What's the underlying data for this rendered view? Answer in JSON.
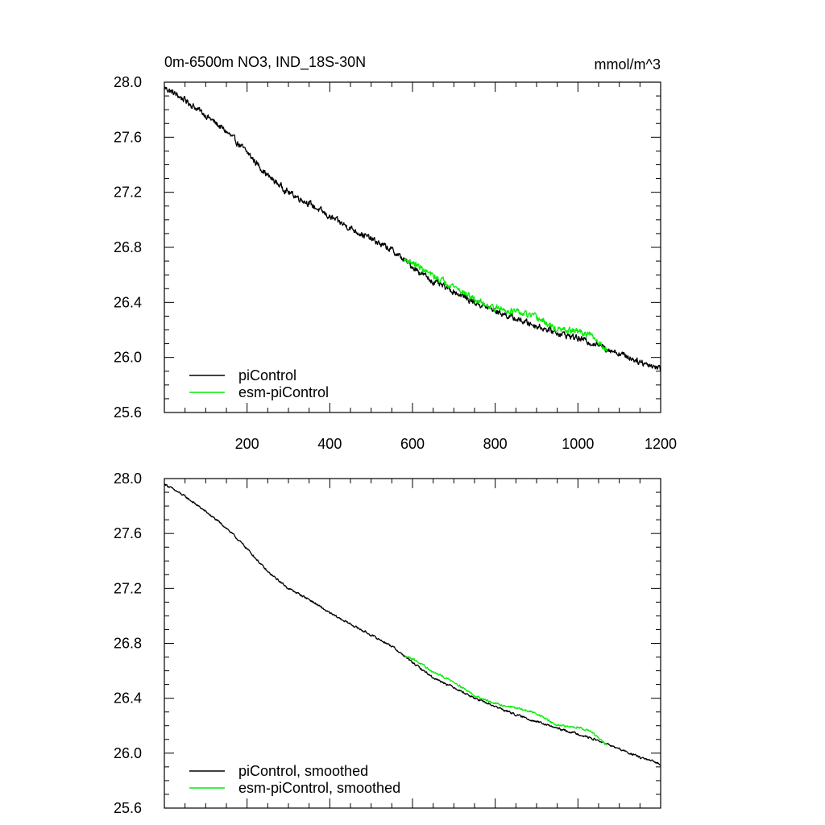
{
  "figure": {
    "title": "0m-6500m NO3, IND_18S-30N",
    "units": "mmol/m^3"
  },
  "chart_data": [
    {
      "type": "line",
      "panel": "top",
      "xlim": [
        0,
        1200
      ],
      "ylim": [
        25.6,
        28.0
      ],
      "x_ticks": [
        200,
        400,
        600,
        800,
        1000,
        1200
      ],
      "y_ticks": [
        25.6,
        26.0,
        26.4,
        26.8,
        27.2,
        27.6,
        28.0
      ],
      "x_tick_labels": [
        "200",
        "400",
        "600",
        "800",
        "1000",
        "1200"
      ],
      "y_tick_labels": [
        "25.6",
        "26.0",
        "26.4",
        "26.8",
        "27.2",
        "27.6",
        "28.0"
      ],
      "legend_position": "bottom-left",
      "series": [
        {
          "name": "piControl",
          "color": "#000000",
          "x": [
            1,
            50,
            100,
            150,
            200,
            250,
            300,
            350,
            400,
            450,
            500,
            550,
            600,
            650,
            700,
            750,
            800,
            850,
            900,
            950,
            1000,
            1050,
            1100,
            1150,
            1200
          ],
          "y": [
            27.96,
            27.87,
            27.76,
            27.64,
            27.49,
            27.32,
            27.2,
            27.12,
            27.02,
            26.94,
            26.86,
            26.78,
            26.66,
            26.55,
            26.48,
            26.4,
            26.34,
            26.28,
            26.23,
            26.18,
            26.14,
            26.09,
            26.03,
            25.97,
            25.92
          ],
          "noise": 0.018
        },
        {
          "name": "esm-piControl",
          "color": "#00ee00",
          "x": [
            580,
            600,
            650,
            700,
            750,
            800,
            850,
            900,
            950,
            1000,
            1030,
            1050,
            1070
          ],
          "y": [
            26.71,
            26.69,
            26.59,
            26.52,
            26.42,
            26.36,
            26.33,
            26.29,
            26.2,
            26.19,
            26.16,
            26.11,
            26.06
          ],
          "noise": 0.018
        }
      ]
    },
    {
      "type": "line",
      "panel": "bottom",
      "xlim": [
        0,
        1200
      ],
      "ylim": [
        25.6,
        28.0
      ],
      "x_ticks": [
        200,
        400,
        600,
        800,
        1000,
        1200
      ],
      "y_ticks": [
        25.6,
        26.0,
        26.4,
        26.8,
        27.2,
        27.6,
        28.0
      ],
      "y_tick_labels": [
        "25.6",
        "26.0",
        "26.4",
        "26.8",
        "27.2",
        "27.6",
        "28.0"
      ],
      "legend_position": "bottom-left",
      "series": [
        {
          "name": "piControl, smoothed",
          "color": "#000000",
          "x": [
            1,
            50,
            100,
            150,
            200,
            250,
            300,
            350,
            400,
            450,
            500,
            550,
            600,
            650,
            700,
            750,
            800,
            850,
            900,
            950,
            1000,
            1050,
            1100,
            1150,
            1200
          ],
          "y": [
            27.96,
            27.87,
            27.76,
            27.64,
            27.49,
            27.32,
            27.2,
            27.12,
            27.02,
            26.94,
            26.86,
            26.78,
            26.66,
            26.55,
            26.48,
            26.4,
            26.34,
            26.28,
            26.23,
            26.18,
            26.14,
            26.09,
            26.03,
            25.97,
            25.92
          ],
          "noise": 0.006
        },
        {
          "name": "esm-piControl, smoothed",
          "color": "#00ee00",
          "x": [
            580,
            600,
            650,
            700,
            750,
            800,
            850,
            900,
            950,
            1000,
            1030,
            1050,
            1070
          ],
          "y": [
            26.71,
            26.69,
            26.59,
            26.52,
            26.42,
            26.36,
            26.33,
            26.29,
            26.2,
            26.19,
            26.16,
            26.11,
            26.06
          ],
          "noise": 0.006
        }
      ]
    }
  ]
}
